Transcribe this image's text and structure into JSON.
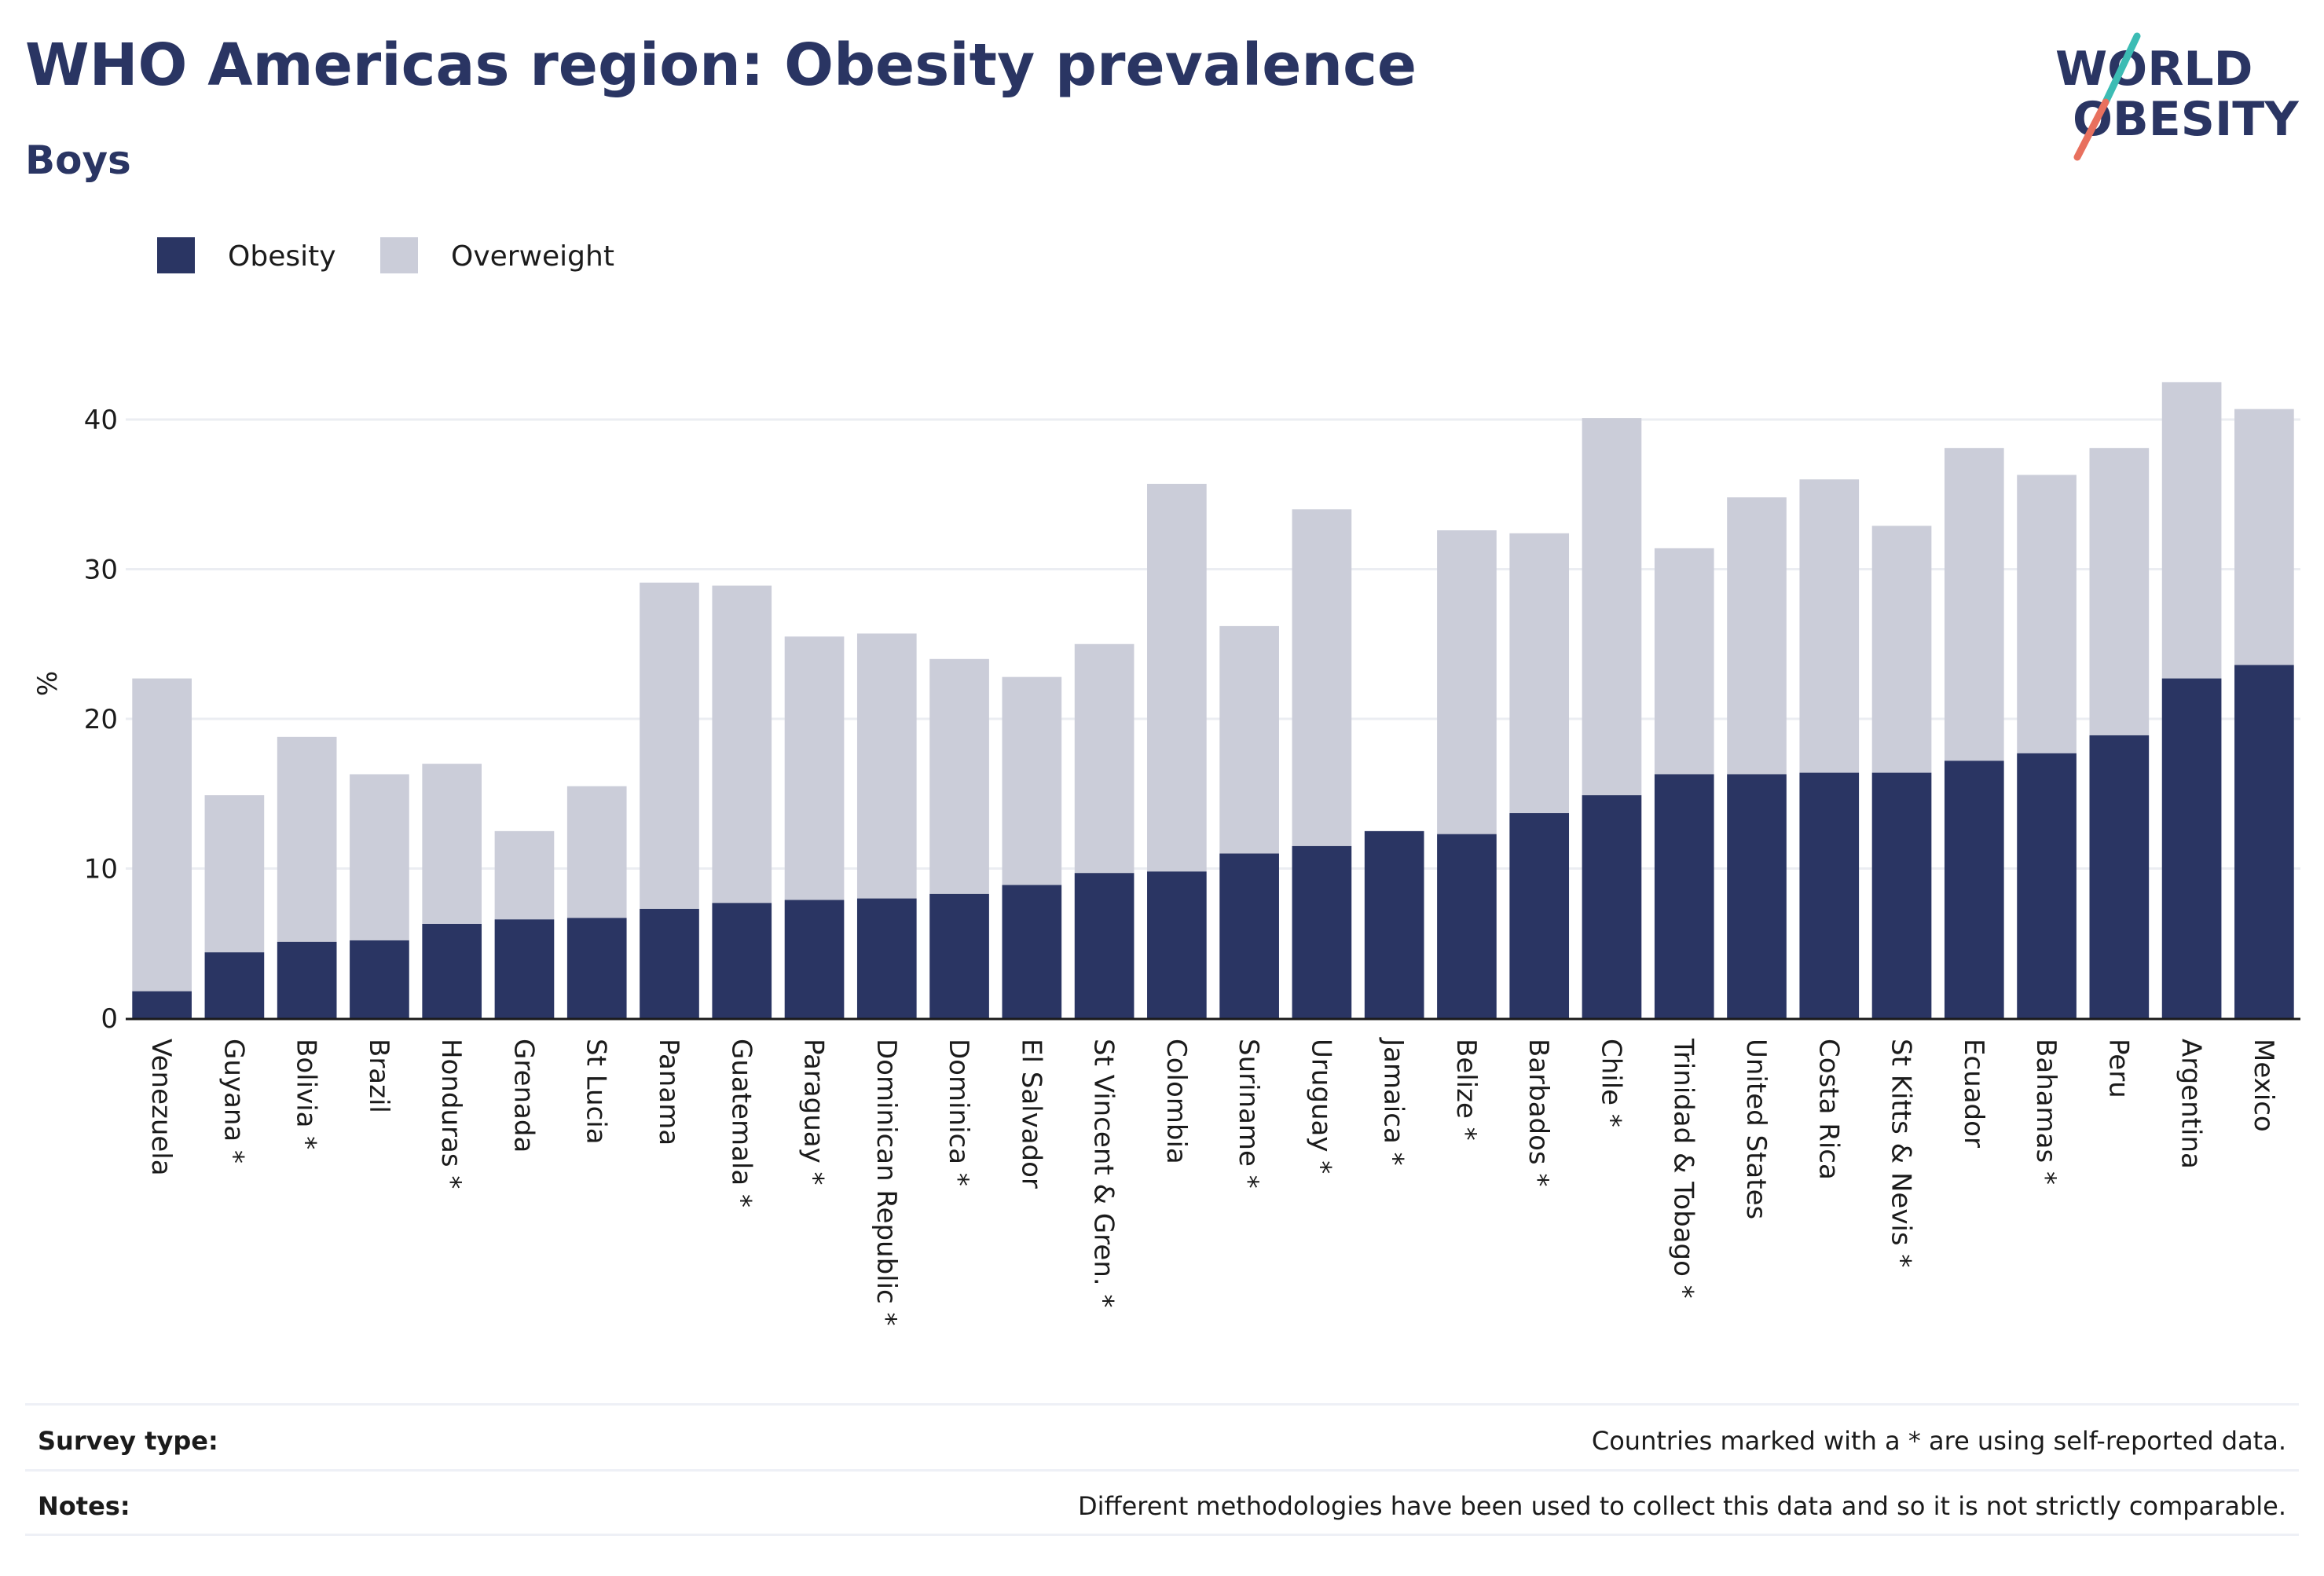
{
  "logo": {
    "line1": "WORLD",
    "line2": "OBESITY",
    "accent_teal": "#3cbcb4",
    "accent_red": "#e8705e"
  },
  "footer": {
    "survey_label": "Survey type:",
    "survey_text": "Countries marked with a * are using self-reported data.",
    "notes_label": "Notes:",
    "notes_text": "Different methodologies have been used to collect this data and so it is not strictly comparable."
  },
  "chart_data": {
    "type": "bar",
    "stacked": true,
    "title": "WHO Americas region: Obesity prevalence",
    "subtitle": "Boys",
    "xlabel": "",
    "ylabel": "%",
    "ylim": [
      0,
      44
    ],
    "yticks": [
      0,
      10,
      20,
      30,
      40
    ],
    "grid": true,
    "legend_position": "top-left",
    "colors": {
      "obesity": "#2a3563",
      "overweight": "#cbcdd9"
    },
    "categories": [
      "Venezuela",
      "Guyana *",
      "Bolivia *",
      "Brazil",
      "Honduras *",
      "Grenada",
      "St Lucia",
      "Panama",
      "Guatemala *",
      "Paraguay *",
      "Dominican Republic *",
      "Dominica *",
      "El Salvador",
      "St Vincent & Gren. *",
      "Colombia",
      "Suriname *",
      "Uruguay *",
      "Jamaica *",
      "Belize *",
      "Barbados *",
      "Chile *",
      "Trinidad & Tobago *",
      "United States",
      "Costa Rica",
      "St Kitts & Nevis *",
      "Ecuador",
      "Bahamas *",
      "Peru",
      "Argentina",
      "Mexico"
    ],
    "series": [
      {
        "name": "Obesity",
        "values": [
          1.8,
          4.4,
          5.1,
          5.2,
          6.3,
          6.6,
          6.7,
          7.3,
          7.7,
          7.9,
          8.0,
          8.3,
          8.9,
          9.7,
          9.8,
          11.0,
          11.5,
          12.5,
          12.3,
          13.7,
          14.9,
          16.3,
          16.3,
          16.4,
          16.4,
          17.2,
          17.7,
          18.9,
          22.7,
          23.6
        ]
      },
      {
        "name": "Overweight",
        "values": [
          20.9,
          10.5,
          13.7,
          11.1,
          10.7,
          5.9,
          8.8,
          21.8,
          21.2,
          17.6,
          17.7,
          15.7,
          13.9,
          15.3,
          25.9,
          15.2,
          22.5,
          0,
          20.3,
          18.7,
          25.2,
          15.1,
          18.5,
          19.6,
          16.5,
          20.9,
          18.6,
          19.2,
          19.8,
          17.1
        ]
      }
    ]
  }
}
